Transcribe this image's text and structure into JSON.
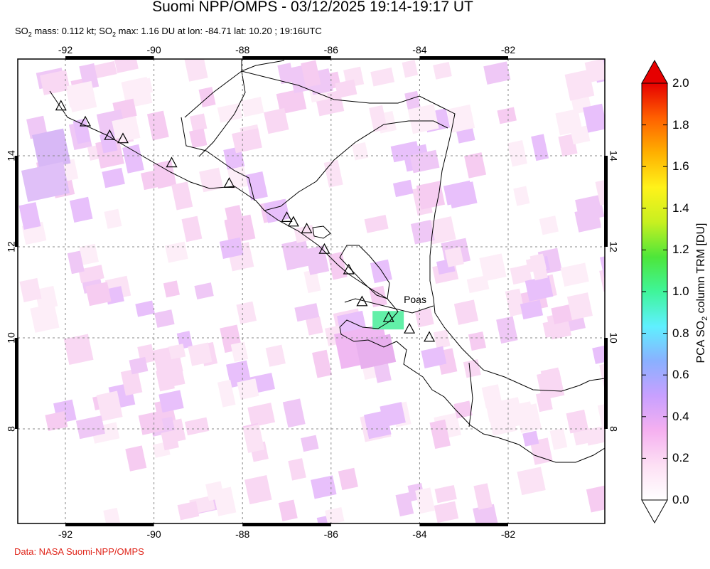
{
  "header": {
    "title": "Suomi NPP/OMPS - 03/12/2025 19:14-19:17 UT",
    "subtitle_parts": [
      "SO",
      "2",
      " mass: 0.112 kt; SO",
      "2",
      " max: 1.16 DU at lon: -84.71 lat: 10.20 ; 19:16UTC"
    ]
  },
  "credit": "Data: NASA Suomi-NPP/OMPS",
  "map": {
    "lon_range": [
      -93,
      -80
    ],
    "lat_range": [
      6,
      17.2
    ],
    "lon_ticks": [
      -92,
      -90,
      -88,
      -86,
      -84,
      -82
    ],
    "lat_ticks": [
      8,
      10,
      12,
      14
    ],
    "lon_tick_labels": [
      "-92",
      "-90",
      "-88",
      "-86",
      "-84",
      "-82"
    ],
    "lat_tick_labels": [
      "8",
      "10",
      "12",
      "14"
    ],
    "volcano_annotation": {
      "label": "Poas",
      "lon": -84.23,
      "lat": 10.2
    },
    "volcanoes": [
      {
        "lon": -92.1,
        "lat": 15.1
      },
      {
        "lon": -91.55,
        "lat": 14.75
      },
      {
        "lon": -91.0,
        "lat": 14.45
      },
      {
        "lon": -90.7,
        "lat": 14.38
      },
      {
        "lon": -89.6,
        "lat": 13.85
      },
      {
        "lon": -88.3,
        "lat": 13.4
      },
      {
        "lon": -87.0,
        "lat": 12.65
      },
      {
        "lon": -86.85,
        "lat": 12.55
      },
      {
        "lon": -86.55,
        "lat": 12.4
      },
      {
        "lon": -86.15,
        "lat": 11.95
      },
      {
        "lon": -85.6,
        "lat": 11.5
      },
      {
        "lon": -85.3,
        "lat": 10.8
      },
      {
        "lon": -84.7,
        "lat": 10.45
      },
      {
        "lon": -84.23,
        "lat": 10.2
      },
      {
        "lon": -83.78,
        "lat": 10.02
      }
    ],
    "so2_hotspot": {
      "lon": -84.71,
      "lat": 10.2,
      "value": 1.16
    }
  },
  "colorbar": {
    "ticks": [
      "2.0",
      "1.8",
      "1.6",
      "1.4",
      "1.2",
      "1.0",
      "0.8",
      "0.6",
      "0.4",
      "0.2",
      "0.0"
    ],
    "label_parts": [
      "PCA SO",
      "2",
      " column TRM [DU]"
    ],
    "stops": [
      "#ffffff",
      "#fde0f4",
      "#f5b0f0",
      "#c8a0ff",
      "#8ab0ff",
      "#5ff0ff",
      "#3ff59a",
      "#4de63a",
      "#c8f020",
      "#fff21a",
      "#ffb000",
      "#ff6000",
      "#e60000"
    ]
  }
}
